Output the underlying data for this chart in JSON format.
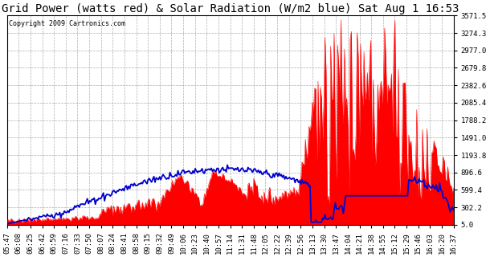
{
  "title": "Grid Power (watts red) & Solar Radiation (W/m2 blue) Sat Aug 1 16:53",
  "copyright": "Copyright 2009 Cartronics.com",
  "yticks": [
    5.0,
    302.2,
    599.4,
    896.6,
    1193.8,
    1491.0,
    1788.2,
    2085.4,
    2382.6,
    2679.8,
    2977.0,
    3274.3,
    3571.5
  ],
  "ylim": [
    5.0,
    3571.5
  ],
  "xtick_labels": [
    "05:47",
    "06:08",
    "06:25",
    "06:42",
    "06:59",
    "07:16",
    "07:33",
    "07:50",
    "08:07",
    "08:24",
    "08:41",
    "08:58",
    "09:15",
    "09:32",
    "09:49",
    "10:06",
    "10:23",
    "10:40",
    "10:57",
    "11:14",
    "11:31",
    "11:48",
    "12:05",
    "12:22",
    "12:39",
    "12:56",
    "13:13",
    "13:30",
    "13:47",
    "14:04",
    "14:21",
    "14:38",
    "14:55",
    "15:12",
    "15:29",
    "15:46",
    "16:03",
    "16:20",
    "16:37"
  ],
  "bg_color": "#ffffff",
  "plot_bg_color": "#ffffff",
  "grid_color": "#999999",
  "red_color": "#ff0000",
  "blue_color": "#0000cc",
  "title_fontsize": 10,
  "copyright_fontsize": 6,
  "tick_fontsize": 6.5
}
